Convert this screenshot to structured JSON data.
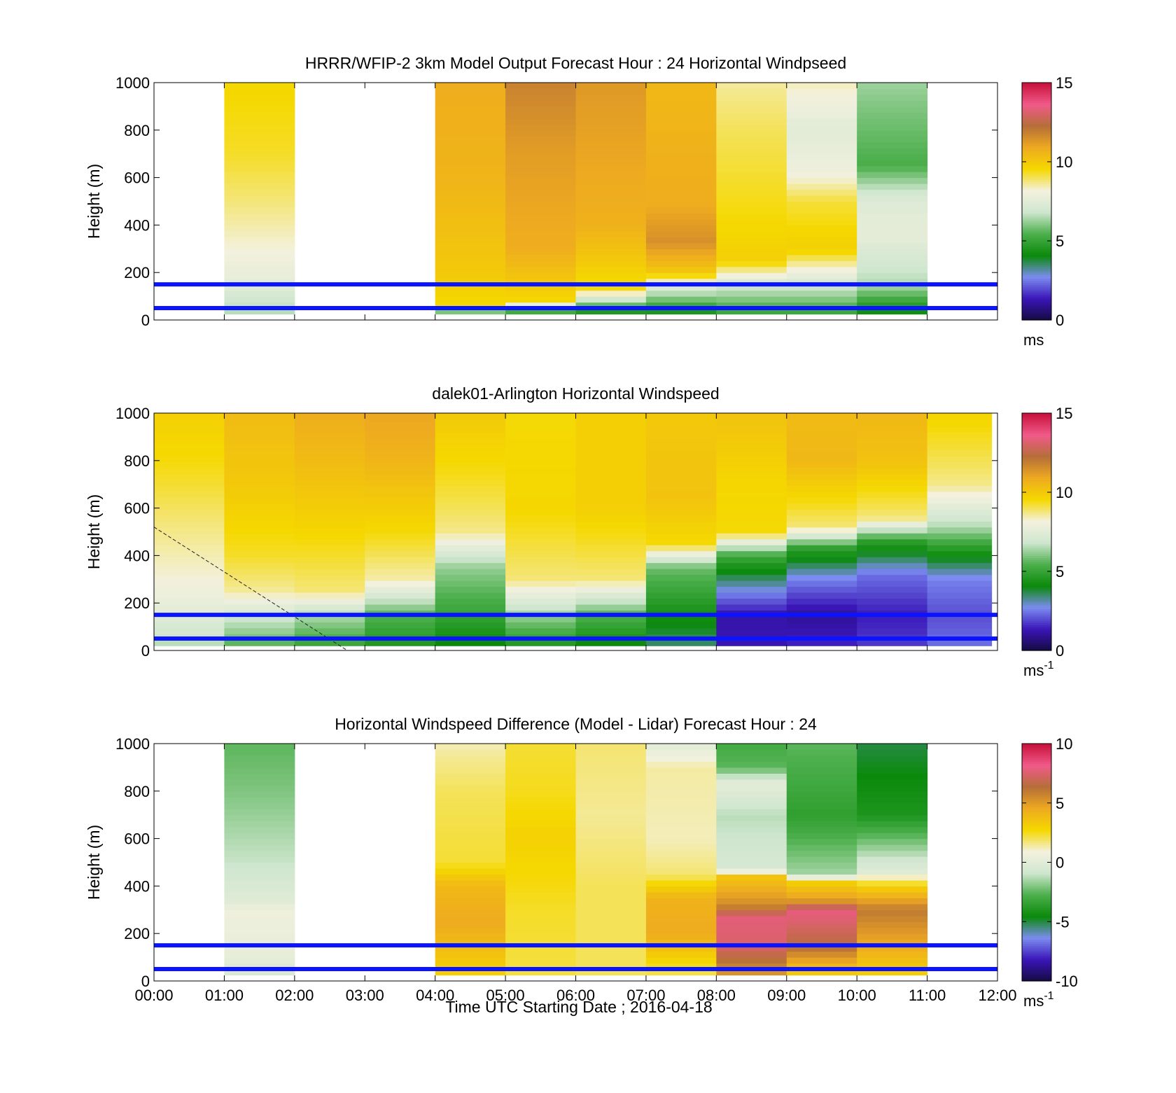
{
  "figure": {
    "x_ticks": [
      "00:00",
      "01:00",
      "02:00",
      "03:00",
      "04:00",
      "05:00",
      "06:00",
      "07:00",
      "08:00",
      "09:00",
      "10:00",
      "11:00",
      "12:00"
    ],
    "x_label": "Time UTC  Starting Date ; 2016-04-18",
    "colormap": [
      "#140a40",
      "#3a16b8",
      "#7b8cf0",
      "#0a8a0a",
      "#4caf4c",
      "#cfe6cf",
      "#f3f1de",
      "#f5d800",
      "#eeaa20",
      "#b56e38",
      "#f05a8a",
      "#c8103a"
    ]
  },
  "chart_data": [
    {
      "type": "heatmap",
      "title": "HRRR/WFIP-2 3km Model Output   Forecast Hour : 24 Horizontal Windpseed",
      "ylabel": "Height (m)",
      "xlim": [
        "00:00",
        "12:00"
      ],
      "ylim": [
        0,
        1000
      ],
      "y_ticks": [
        0,
        200,
        400,
        600,
        800,
        1000
      ],
      "colorbar": {
        "min": 0,
        "max": 15,
        "ticks": [
          0,
          5,
          10,
          15
        ],
        "unit": "ms",
        "unit_sup": ""
      },
      "reference_lines_m": [
        50,
        150
      ],
      "columns": [
        {
          "start": "01:00",
          "end": "02:00",
          "profile": [
            [
              25,
              6.5
            ],
            [
              100,
              7.0
            ],
            [
              150,
              7.6
            ],
            [
              300,
              8.2
            ],
            [
              500,
              8.8
            ],
            [
              700,
              9.3
            ],
            [
              1000,
              9.6
            ]
          ]
        },
        {
          "start": "04:00",
          "end": "05:00",
          "profile": [
            [
              25,
              4.0
            ],
            [
              60,
              9.5
            ],
            [
              200,
              10.0
            ],
            [
              600,
              10.6
            ],
            [
              1000,
              10.8
            ]
          ]
        },
        {
          "start": "05:00",
          "end": "06:00",
          "profile": [
            [
              25,
              4.0
            ],
            [
              80,
              9.6
            ],
            [
              300,
              10.8
            ],
            [
              700,
              11.2
            ],
            [
              1000,
              11.8
            ]
          ]
        },
        {
          "start": "06:00",
          "end": "07:00",
          "profile": [
            [
              25,
              4.0
            ],
            [
              90,
              7.0
            ],
            [
              130,
              9.4
            ],
            [
              400,
              10.7
            ],
            [
              1000,
              11.3
            ]
          ]
        },
        {
          "start": "07:00",
          "end": "08:00",
          "profile": [
            [
              25,
              4.2
            ],
            [
              130,
              7.0
            ],
            [
              200,
              10.0
            ],
            [
              330,
              11.5
            ],
            [
              500,
              10.8
            ],
            [
              1000,
              10.5
            ]
          ]
        },
        {
          "start": "08:00",
          "end": "09:00",
          "profile": [
            [
              25,
              5.0
            ],
            [
              150,
              7.0
            ],
            [
              250,
              9.8
            ],
            [
              500,
              9.4
            ],
            [
              800,
              9.0
            ],
            [
              1000,
              8.6
            ]
          ]
        },
        {
          "start": "09:00",
          "end": "10:00",
          "profile": [
            [
              25,
              5.0
            ],
            [
              150,
              7.0
            ],
            [
              300,
              9.8
            ],
            [
              500,
              9.2
            ],
            [
              620,
              8.0
            ],
            [
              800,
              7.5
            ],
            [
              1000,
              8.4
            ]
          ]
        },
        {
          "start": "10:00",
          "end": "11:00",
          "profile": [
            [
              25,
              4.0
            ],
            [
              150,
              6.5
            ],
            [
              300,
              7.3
            ],
            [
              350,
              7.6
            ],
            [
              400,
              7.6
            ],
            [
              500,
              7.4
            ],
            [
              650,
              5.4
            ],
            [
              900,
              6.0
            ],
            [
              1000,
              6.3
            ]
          ]
        }
      ]
    },
    {
      "type": "heatmap",
      "title": "dalek01-Arlington  Horizontal Windspeed",
      "ylabel": "Height (m)",
      "xlim": [
        "00:00",
        "12:00"
      ],
      "ylim": [
        0,
        1000
      ],
      "y_ticks": [
        0,
        200,
        400,
        600,
        800,
        1000
      ],
      "colorbar": {
        "min": 0,
        "max": 15,
        "ticks": [
          0,
          5,
          10,
          15
        ],
        "unit": "ms",
        "unit_sup": "-1"
      },
      "reference_lines_m": [
        50,
        150
      ],
      "annotation_line": {
        "from": [
          "00:00",
          520
        ],
        "to": [
          "02:45",
          0
        ]
      },
      "columns": [
        {
          "start": "00:00",
          "end": "01:00",
          "profile": [
            [
              20,
              6.5
            ],
            [
              150,
              7.5
            ],
            [
              300,
              8.2
            ],
            [
              500,
              8.7
            ],
            [
              800,
              9.5
            ],
            [
              1000,
              9.8
            ]
          ]
        },
        {
          "start": "01:00",
          "end": "02:00",
          "profile": [
            [
              20,
              5.5
            ],
            [
              150,
              7.0
            ],
            [
              250,
              8.6
            ],
            [
              400,
              9.3
            ],
            [
              700,
              10.0
            ],
            [
              1000,
              10.4
            ]
          ]
        },
        {
          "start": "02:00",
          "end": "03:00",
          "profile": [
            [
              20,
              5.0
            ],
            [
              150,
              6.5
            ],
            [
              250,
              8.8
            ],
            [
              500,
              9.6
            ],
            [
              800,
              10.4
            ],
            [
              1000,
              10.8
            ]
          ]
        },
        {
          "start": "03:00",
          "end": "04:00",
          "profile": [
            [
              20,
              4.5
            ],
            [
              150,
              5.5
            ],
            [
              300,
              8.5
            ],
            [
              500,
              9.5
            ],
            [
              800,
              10.6
            ],
            [
              1000,
              11.0
            ]
          ]
        },
        {
          "start": "04:00",
          "end": "05:00",
          "profile": [
            [
              20,
              4.0
            ],
            [
              150,
              5.0
            ],
            [
              350,
              6.2
            ],
            [
              500,
              8.7
            ],
            [
              700,
              9.3
            ],
            [
              1000,
              10.0
            ]
          ]
        },
        {
          "start": "05:00",
          "end": "06:00",
          "profile": [
            [
              20,
              4.5
            ],
            [
              150,
              6.3
            ],
            [
              300,
              8.8
            ],
            [
              600,
              9.6
            ],
            [
              1000,
              9.5
            ]
          ]
        },
        {
          "start": "06:00",
          "end": "07:00",
          "profile": [
            [
              20,
              4.0
            ],
            [
              150,
              5.5
            ],
            [
              300,
              8.8
            ],
            [
              600,
              9.8
            ],
            [
              1000,
              9.8
            ]
          ]
        },
        {
          "start": "07:00",
          "end": "08:00",
          "profile": [
            [
              20,
              3.5
            ],
            [
              150,
              4.3
            ],
            [
              350,
              5.8
            ],
            [
              450,
              9.5
            ],
            [
              650,
              10.2
            ],
            [
              1000,
              10.0
            ]
          ]
        },
        {
          "start": "08:00",
          "end": "09:00",
          "profile": [
            [
              20,
              1.3
            ],
            [
              150,
              1.2
            ],
            [
              300,
              3.5
            ],
            [
              400,
              5.2
            ],
            [
              500,
              9.5
            ],
            [
              700,
              9.6
            ],
            [
              1000,
              10.2
            ]
          ]
        },
        {
          "start": "09:00",
          "end": "10:00",
          "profile": [
            [
              20,
              1.5
            ],
            [
              150,
              1.0
            ],
            [
              300,
              2.6
            ],
            [
              430,
              4.8
            ],
            [
              520,
              8.8
            ],
            [
              800,
              10.5
            ],
            [
              1000,
              10.4
            ]
          ]
        },
        {
          "start": "10:00",
          "end": "11:00",
          "profile": [
            [
              20,
              1.8
            ],
            [
              150,
              1.4
            ],
            [
              320,
              2.4
            ],
            [
              460,
              4.8
            ],
            [
              560,
              8.8
            ],
            [
              800,
              10.2
            ],
            [
              1000,
              10.5
            ]
          ]
        },
        {
          "start": "11:00",
          "end": "11:55",
          "profile": [
            [
              20,
              2.4
            ],
            [
              150,
              2.0
            ],
            [
              300,
              2.6
            ],
            [
              420,
              4.5
            ],
            [
              520,
              6.5
            ],
            [
              700,
              8.7
            ],
            [
              1000,
              9.7
            ]
          ]
        }
      ]
    },
    {
      "type": "heatmap",
      "title": "Horizontal Windspeed Difference (Model - Lidar) Forecast Hour : 24",
      "ylabel": "Height (m)",
      "xlim": [
        "00:00",
        "12:00"
      ],
      "ylim": [
        0,
        1000
      ],
      "y_ticks": [
        0,
        200,
        400,
        600,
        800,
        1000
      ],
      "colorbar": {
        "min": -10,
        "max": 10,
        "ticks": [
          -10,
          -5,
          0,
          5,
          10
        ],
        "unit": "ms",
        "unit_sup": "-1"
      },
      "reference_lines_m": [
        50,
        150
      ],
      "columns": [
        {
          "start": "01:00",
          "end": "02:00",
          "profile": [
            [
              25,
              -0.5
            ],
            [
              100,
              0.3
            ],
            [
              300,
              0.7
            ],
            [
              330,
              0.0
            ],
            [
              500,
              -1.0
            ],
            [
              800,
              -2.0
            ],
            [
              1000,
              -2.5
            ]
          ]
        },
        {
          "start": "04:00",
          "end": "05:00",
          "profile": [
            [
              25,
              3.0
            ],
            [
              250,
              4.5
            ],
            [
              400,
              4.0
            ],
            [
              500,
              2.3
            ],
            [
              800,
              2.0
            ],
            [
              950,
              1.5
            ],
            [
              1000,
              1.2
            ]
          ]
        },
        {
          "start": "05:00",
          "end": "06:00",
          "profile": [
            [
              25,
              2.2
            ],
            [
              300,
              2.4
            ],
            [
              600,
              3.0
            ],
            [
              800,
              2.5
            ],
            [
              1000,
              2.3
            ]
          ]
        },
        {
          "start": "06:00",
          "end": "07:00",
          "profile": [
            [
              25,
              2.0
            ],
            [
              400,
              2.0
            ],
            [
              700,
              1.5
            ],
            [
              1000,
              1.8
            ]
          ]
        },
        {
          "start": "07:00",
          "end": "08:00",
          "profile": [
            [
              25,
              2.0
            ],
            [
              200,
              4.5
            ],
            [
              350,
              4.2
            ],
            [
              450,
              1.8
            ],
            [
              600,
              1.2
            ],
            [
              900,
              1.4
            ],
            [
              1000,
              0.0
            ]
          ]
        },
        {
          "start": "08:00",
          "end": "09:00",
          "profile": [
            [
              25,
              5.0
            ],
            [
              150,
              7.5
            ],
            [
              270,
              7.8
            ],
            [
              320,
              5.5
            ],
            [
              440,
              3.5
            ],
            [
              470,
              -0.5
            ],
            [
              700,
              -1.2
            ],
            [
              830,
              0.2
            ],
            [
              900,
              -2.5
            ],
            [
              1000,
              -3.0
            ]
          ]
        },
        {
          "start": "09:00",
          "end": "10:00",
          "profile": [
            [
              25,
              3.0
            ],
            [
              150,
              6.5
            ],
            [
              300,
              8.0
            ],
            [
              340,
              5.0
            ],
            [
              420,
              3.0
            ],
            [
              450,
              -1.5
            ],
            [
              700,
              -3.5
            ],
            [
              1000,
              -2.5
            ]
          ]
        },
        {
          "start": "10:00",
          "end": "11:00",
          "profile": [
            [
              25,
              3.0
            ],
            [
              150,
              4.5
            ],
            [
              300,
              6.0
            ],
            [
              400,
              3.0
            ],
            [
              460,
              0.0
            ],
            [
              700,
              -4.0
            ],
            [
              1000,
              -5.0
            ]
          ]
        }
      ]
    }
  ]
}
